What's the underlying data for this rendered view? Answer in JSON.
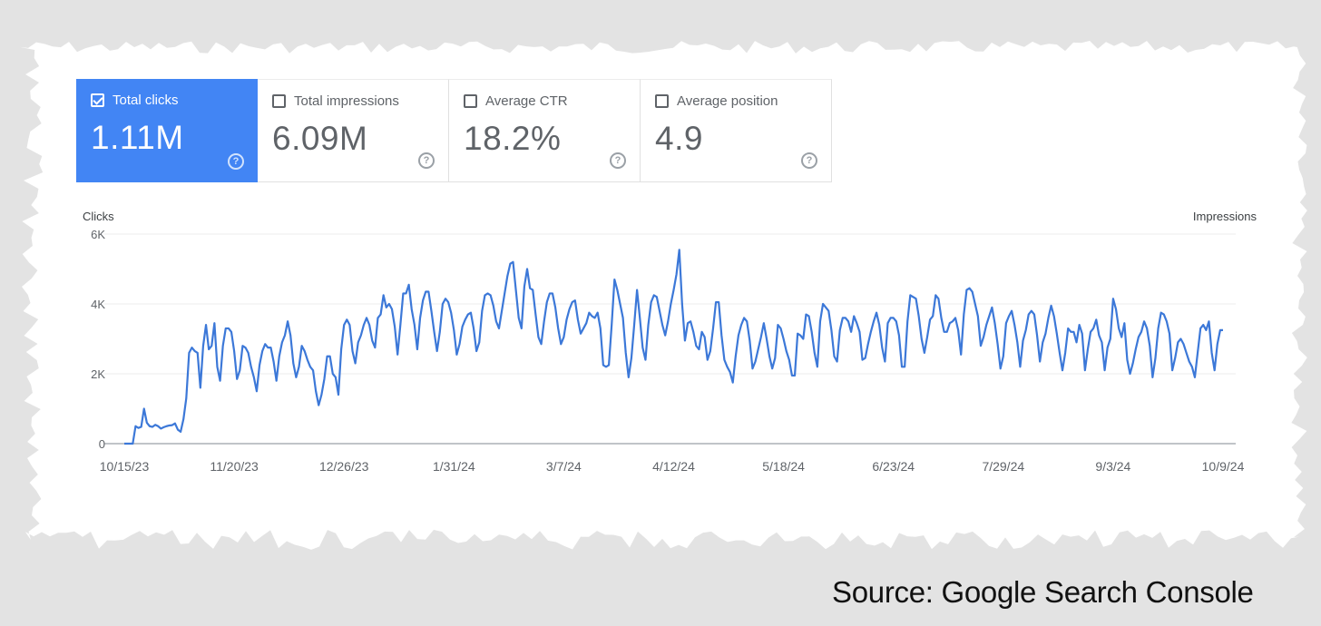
{
  "colors": {
    "accent": "#4285f4",
    "line": "#3c78d8",
    "paper": "#ffffff",
    "background": "#e3e3e3",
    "text_muted": "#5f6368"
  },
  "cards": [
    {
      "label": "Total clicks",
      "value": "1.11M",
      "checked": true,
      "help_icon": "help-circle-icon"
    },
    {
      "label": "Total impressions",
      "value": "6.09M",
      "checked": false,
      "help_icon": "help-circle-icon"
    },
    {
      "label": "Average CTR",
      "value": "18.2%",
      "checked": false,
      "help_icon": "help-circle-icon"
    },
    {
      "label": "Average position",
      "value": "4.9",
      "checked": false,
      "help_icon": "help-circle-icon"
    }
  ],
  "help_glyph": "?",
  "chart_data": {
    "type": "line",
    "title": "",
    "ylabel_left": "Clicks",
    "ylabel_right": "Impressions",
    "ylim": [
      0,
      6000
    ],
    "yticks": [
      0,
      2000,
      4000,
      6000
    ],
    "ytick_labels": [
      "0",
      "2K",
      "4K",
      "6K"
    ],
    "xticks": [
      "10/15/23",
      "11/20/23",
      "12/26/23",
      "1/31/24",
      "3/7/24",
      "4/12/24",
      "5/18/24",
      "6/23/24",
      "7/29/24",
      "9/3/24",
      "10/9/24"
    ],
    "x_start": "2023-10-15",
    "x_end": "2024-10-15",
    "grid": true,
    "series": [
      {
        "name": "Clicks",
        "values": [
          0,
          0,
          0,
          0,
          500,
          450,
          480,
          1000,
          600,
          500,
          480,
          540,
          500,
          430,
          470,
          500,
          520,
          530,
          580,
          400,
          340,
          700,
          1300,
          2600,
          2750,
          2650,
          2600,
          1600,
          2800,
          3400,
          2700,
          2800,
          3450,
          2200,
          1800,
          2800,
          3300,
          3300,
          3200,
          2650,
          1850,
          2100,
          2800,
          2750,
          2600,
          2200,
          1900,
          1500,
          2250,
          2650,
          2850,
          2750,
          2750,
          2350,
          1800,
          2500,
          2900,
          3100,
          3500,
          3100,
          2300,
          1900,
          2200,
          2800,
          2650,
          2400,
          2200,
          2100,
          1500,
          1100,
          1400,
          1850,
          2500,
          2500,
          2000,
          1900,
          1400,
          2700,
          3400,
          3550,
          3400,
          2650,
          2300,
          2900,
          3100,
          3400,
          3600,
          3400,
          2950,
          2750,
          3600,
          3700,
          4250,
          3900,
          4000,
          3850,
          3350,
          2550,
          3400,
          4300,
          4300,
          4550,
          3850,
          3400,
          2700,
          3600,
          4100,
          4350,
          4350,
          3800,
          3200,
          2650,
          3200,
          4000,
          4150,
          4050,
          3750,
          3250,
          2550,
          2850,
          3350,
          3550,
          3700,
          3750,
          3300,
          2650,
          2900,
          3800,
          4250,
          4300,
          4250,
          3950,
          3500,
          3300,
          3800,
          4300,
          4800,
          5150,
          5200,
          4400,
          3600,
          3300,
          4500,
          5000,
          4450,
          4400,
          3700,
          3050,
          2850,
          3500,
          4050,
          4300,
          4300,
          3900,
          3300,
          2850,
          3050,
          3550,
          3850,
          4050,
          4100,
          3550,
          3150,
          3300,
          3450,
          3750,
          3650,
          3600,
          3750,
          3300,
          2250,
          2200,
          2250,
          3400,
          4700,
          4400,
          4000,
          3600,
          2600,
          1900,
          2450,
          3400,
          4400,
          3600,
          2750,
          2400,
          3400,
          4050,
          4250,
          4200,
          3800,
          3400,
          3100,
          3500,
          4000,
          4400,
          4850,
          5550,
          4000,
          2950,
          3450,
          3500,
          3200,
          2800,
          2700,
          3200,
          3050,
          2400,
          2650,
          3300,
          4050,
          4050,
          3100,
          2400,
          2200,
          2050,
          1750,
          2500,
          3100,
          3400,
          3600,
          3500,
          2950,
          2150,
          2350,
          2700,
          3050,
          3450,
          3000,
          2500,
          2150,
          2450,
          3400,
          3300,
          3000,
          2650,
          2400,
          1950,
          1950,
          3150,
          3100,
          3000,
          3700,
          3650,
          3200,
          2600,
          2200,
          3500,
          4000,
          3900,
          3800,
          3250,
          2500,
          2350,
          3250,
          3600,
          3600,
          3500,
          3200,
          3650,
          3450,
          3200,
          2400,
          2450,
          2850,
          3200,
          3500,
          3750,
          3400,
          2750,
          2350,
          3450,
          3600,
          3600,
          3500,
          3100,
          2200,
          2200,
          3500,
          4250,
          4200,
          4150,
          3650,
          3000,
          2600,
          3050,
          3550,
          3650,
          4250,
          4150,
          3600,
          3200,
          3200,
          3450,
          3500,
          3600,
          3250,
          2550,
          3700,
          4400,
          4450,
          4350,
          4000,
          3650,
          2800,
          3050,
          3400,
          3650,
          3900,
          3450,
          2850,
          2150,
          2500,
          3450,
          3650,
          3800,
          3400,
          2900,
          2200,
          2950,
          3250,
          3700,
          3800,
          3700,
          3100,
          2350,
          2900,
          3150,
          3600,
          3950,
          3650,
          3150,
          2600,
          2100,
          2600,
          3300,
          3200,
          3200,
          2900,
          3400,
          3150,
          2100,
          2700,
          3200,
          3300,
          3550,
          3100,
          2900,
          2100,
          2750,
          3000,
          4150,
          3850,
          3300,
          3050,
          3450,
          2400,
          2000,
          2300,
          2700,
          3050,
          3200,
          3500,
          3300,
          2800,
          1900,
          2450,
          3300,
          3750,
          3700,
          3500,
          3150,
          2100,
          2450,
          2900,
          3000,
          2850,
          2600,
          2350,
          2200,
          1900,
          2600,
          3300,
          3400,
          3250,
          3500,
          2600,
          2100,
          2850,
          3250,
          3250
        ]
      }
    ]
  },
  "source_text": "Source: Google Search Console"
}
